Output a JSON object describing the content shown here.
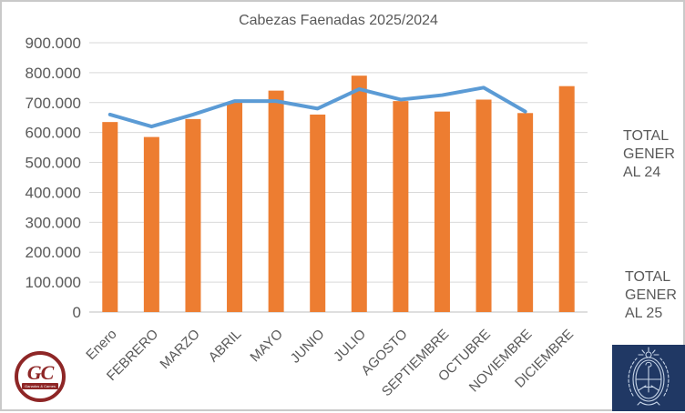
{
  "frame": {
    "border_color": "#c9c9c9",
    "background": "#ffffff"
  },
  "chart_data": {
    "type": "bar",
    "title": "Cabezas Faenadas 2025/2024",
    "categories": [
      "Enero",
      "FEBRERO",
      "MARZO",
      "ABRIL",
      "MAYO",
      "JUNIO",
      "JULIO",
      "AGOSTO",
      "SEPTIEMBRE",
      "OCTUBRE",
      "NOVIEMBRE",
      "DICIEMBRE"
    ],
    "series": [
      {
        "name": "TOTAL GENERAL 24",
        "type": "bar",
        "color": "#ED7D31",
        "values": [
          635000,
          585000,
          645000,
          700000,
          740000,
          660000,
          790000,
          705000,
          670000,
          710000,
          665000,
          755000
        ]
      },
      {
        "name": "TOTAL GENERAL 25",
        "type": "line",
        "color": "#5B9BD5",
        "values": [
          660000,
          620000,
          660000,
          705000,
          705000,
          680000,
          745000,
          710000,
          725000,
          750000,
          670000,
          null
        ]
      }
    ],
    "ylim": [
      0,
      900000
    ],
    "ytick_step": 100000,
    "ytick_labels": [
      "0",
      "100.000",
      "200.000",
      "300.000",
      "400.000",
      "500.000",
      "600.000",
      "700.000",
      "800.000",
      "900.000"
    ],
    "grid": true,
    "gridline_color": "#D9D9D9",
    "axis_line_color": "#BFBFBF",
    "axis_text_color": "#595959",
    "legend_position": "right"
  },
  "legend": {
    "entries": [
      {
        "label_lines": [
          "TOTAL",
          "GENER",
          "AL 24"
        ],
        "swatch": "bar",
        "color": "#ED7D31"
      },
      {
        "label_lines": [
          "TOTAL",
          "GENER",
          "AL 25"
        ],
        "swatch": "line",
        "color": "#5B9BD5"
      }
    ]
  },
  "logos": {
    "gc": {
      "initials": "GC",
      "subtitle": "Ganados & Carnes",
      "color": "#8e2626"
    },
    "argentina": {
      "background": "#203864",
      "line_color": "#c7d5e8"
    }
  }
}
